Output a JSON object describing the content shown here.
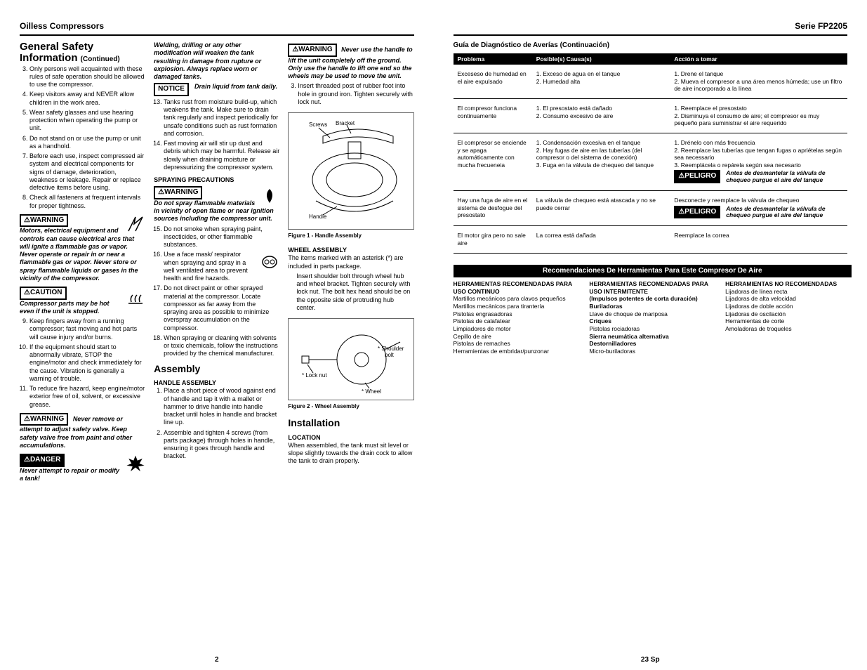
{
  "left": {
    "header_left": "Oilless Compressors",
    "page_num": "2",
    "sections": {
      "safety_title": "General Safety Information",
      "continued": "(Continued)",
      "assembly_title": "Assembly",
      "installation_title": "Installation"
    },
    "col1": {
      "items": [
        "Only persons well acquainted with these rules of safe operation should be allowed to use the compressor.",
        "Keep visitors away and NEVER allow children in the work area.",
        "Wear safety glasses and use hearing protection when operating the pump or unit.",
        "Do not stand on or use the pump or unit as a handhold.",
        "Before each use, inspect compressed air system and electrical components for signs of damage, deterioration, weakness or leakage. Repair or replace defective items before using.",
        "Check all fasteners at frequent intervals for proper tightness."
      ],
      "warn1": "Motors, electrical equipment and controls can cause electrical arcs that will ignite a flammable gas or vapor. Never operate or repair in or near a flammable gas or vapor. Never store or spray flammable liquids or gases in the vicinity of the compressor.",
      "caution1": "Compressor parts may be hot even if the unit is stopped.",
      "items2": [
        "Keep fingers away from a running compressor; fast moving and hot parts will cause injury and/or burns.",
        "If the equipment should start to abnormally vibrate, STOP the engine/motor and check immediately for the cause. Vibration is generally a warning of trouble.",
        "To reduce fire hazard, keep engine/motor exterior free of oil, solvent, or excessive grease."
      ],
      "warn2": "Never remove or attempt to adjust safety valve. Keep safety valve free from paint and other accumulations.",
      "danger1": "Never attempt to repair or modify a tank!"
    },
    "col2": {
      "intro": "Welding, drilling or any other modification will weaken the tank resulting in damage from rupture or explosion. Always replace worn or damaged tanks.",
      "notice": "Drain liquid from tank daily.",
      "items13": [
        "Tanks rust from moisture build-up, which weakens the tank. Make sure to drain tank regularly and inspect periodically for unsafe conditions such as rust formation and corrosion.",
        "Fast moving air will stir up dust and debris which may be harmful. Release air slowly when draining moisture or depressurizing the compressor system."
      ],
      "spray_head": "SPRAYING PRECAUTIONS",
      "spray_warn": "Do not spray flammable materials in vicinity of open flame or near ignition sources including the compressor unit.",
      "items15": [
        "Do not smoke when spraying paint, insecticides, or other flammable substances.",
        "Use a face mask/ respirator when spraying and spray in a well ventilated area to prevent health and fire hazards.",
        "Do not direct paint or other sprayed material at the compressor. Locate compressor as far away from the spraying area as possible to minimize overspray accumulation on the compressor.",
        "When spraying or cleaning with solvents or toxic chemicals, follow the instructions provided by the chemical manufacturer."
      ],
      "handle_head": "HANDLE ASSEMBLY",
      "handle_items": [
        "Place a short piece of wood against end of handle and tap it with a mallet or hammer to drive handle into handle bracket until holes in handle and bracket line up.",
        "Assemble and tighten 4 screws (from parts package) through holes  in handle,  ensuring it goes through handle and bracket."
      ]
    },
    "col3": {
      "top_warn": "Never use the handle to lift the unit completely off the ground. Only use the handle to lift one end so the wheels may be used to move the unit.",
      "item3": "Insert threaded post of rubber foot into hole in ground iron. Tighten securely with lock nut.",
      "fig1_caption": "Figure 1 - Handle Assembly",
      "fig1_labels": {
        "screws": "Screws",
        "bracket": "Bracket",
        "handle": "Handle"
      },
      "wheel_head": "WHEEL ASSEMBLY",
      "wheel_intro": "The items marked with an asterisk (*) are included in parts package.",
      "wheel_step": "Insert shoulder bolt through wheel hub and wheel bracket. Tighten securely with lock nut. The bolt hex head should be on the opposite side of protruding hub center.",
      "fig2_caption": "Figure 2 - Wheel Assembly",
      "fig2_labels": {
        "locknut": "* Lock nut",
        "wheel": "* Wheel",
        "bolt": "* Shoulder bolt"
      },
      "location_head": "LOCATION",
      "location_text": "When assembled, the tank must sit level or slope slightly towards the drain cock to allow the tank to drain properly."
    },
    "badges": {
      "warning": "⚠WARNING",
      "caution": "⚠CAUTION",
      "danger": "⚠DANGER",
      "notice": "NOTICE",
      "peligro": "⚠PELIGRO"
    }
  },
  "right": {
    "header_right": "Serie FP2205",
    "page_num": "23 Sp",
    "diag_title": "Guía de Diagnóstico de Averías (Continuación)",
    "diag_cols": {
      "problem": "Problema",
      "cause": "Posible(s) Causa(s)",
      "action": "Acción a tomar"
    },
    "diag_rows": [
      {
        "p": "Exceseso de humedad en el aire expulsado",
        "c": "1. Exceso de agua en el tanque\n2. Humedad alta",
        "a": "1. Drene el tanque\n2. Mueva el compresor a una área menos húmeda; use un filtro de aire incorporado a la línea"
      },
      {
        "p": "El compresor funciona continuamente",
        "c": "1. El presostato está dañado\n2. Consumo excesivo de aire",
        "a": "1. Reemplace el presostato\n2. Disminuya el consumo de aire; el compresor es muy pequeño para suministrar el aire requerido"
      },
      {
        "p": "El compresor se enciende y se apaga automáticamente con mucha frecueneia",
        "c": "1. Condensación excesiva en el tanque\n2. Hay fugas de aire en las tuberías (del compresor o del sistema de conexión)\n3. Fuga en la válvula de chequeo del tanque",
        "a_pre": "1. Drénelo con más frecuencia\n2. Reemplace las tuberías que tengan fugas o apriételas según sea necessario\n3. Reemplácela o repárela según sea necesario",
        "peligro_line": "Antes de desmantelar la válvula de chequeo purgue el aire del tanque"
      },
      {
        "p": "Hay una fuga de aire en el sistema de desfogue del presostato",
        "c": "La válvula de chequeo está atascada y no se puede cerrar",
        "a_pre": "Desconecte y reemplace la válvula de chequeo",
        "peligro_line": "Antes de desmantelar la válvula de chequeo purgue el aire del tanque"
      },
      {
        "p": "El motor gira pero no sale aire",
        "c": "La correa está dañada",
        "a": "Reemplace la correa"
      }
    ],
    "rec_title": "Recomendaciones De Herramientas Para Este Compresor De Aire",
    "rec": {
      "c1": {
        "head": "HERRAMIENTAS RECOMENDADAS PARA USO CONTINUO",
        "items": "Martillos mecánicos para clavos pequeños\nMartillos mecánicos para tirantería\nPistolas engrasadoras\nPistolas de calafatear\nLimpiadores de motor\nCepillo de aire\nPistolas de remaches\nHerramientas de embridar/punzonar"
      },
      "c2": {
        "head": "HERRAMIENTAS RECOMENDADAS PARA USO INTERMITENTE",
        "sub": "(Impulsos potentes de corta duración)",
        "items_bold": [
          "Buriladoras",
          "Criques",
          "Sierra neumática alternativa",
          "Destornilladores"
        ],
        "items_plain": [
          "Llave de choque de mariposa",
          "Pistolas rociadoras",
          "Micro-buriladoras"
        ]
      },
      "c3": {
        "head": "HERRAMIENTAS NO RECOMENDADAS",
        "items": "Lijadoras de línea recta\nLijadoras de alta velocidad\nLijadoras de doble acción\nLijadoras de oscilación\nHerramientas de corte\nAmoladoras de troqueles"
      }
    }
  }
}
